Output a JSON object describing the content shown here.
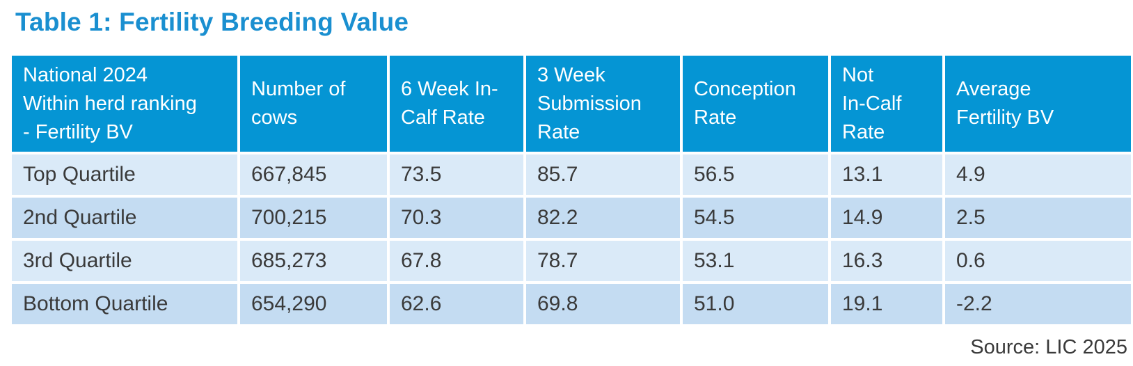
{
  "title": "Table 1: Fertility Breeding Value",
  "table": {
    "headers": [
      [
        "National 2024",
        "Within herd ranking",
        "- Fertility BV"
      ],
      [
        "Number of",
        "cows"
      ],
      [
        "6 Week In-",
        "Calf Rate"
      ],
      [
        "3 Week",
        "Submission",
        "Rate"
      ],
      [
        "Conception",
        "Rate"
      ],
      [
        "Not",
        "In-Calf",
        "Rate"
      ],
      [
        "Average",
        "Fertility BV"
      ]
    ],
    "rows": [
      [
        "Top Quartile",
        "667,845",
        "73.5",
        "85.7",
        "56.5",
        "13.1",
        "4.9"
      ],
      [
        "2nd Quartile",
        "700,215",
        "70.3",
        "82.2",
        "54.5",
        "14.9",
        "2.5"
      ],
      [
        "3rd Quartile",
        "685,273",
        "67.8",
        "78.7",
        "53.1",
        "16.3",
        "0.6"
      ],
      [
        "Bottom Quartile",
        "654,290",
        "62.6",
        "69.8",
        "51.0",
        "19.1",
        "-2.2"
      ]
    ]
  },
  "source": "Source: LIC 2025",
  "colors": {
    "title": "#1a8fd0",
    "header_bg": "#0595d4",
    "row_light": "#daeaf8",
    "row_dark": "#c4dcf2",
    "text": "#3a3a3a"
  }
}
